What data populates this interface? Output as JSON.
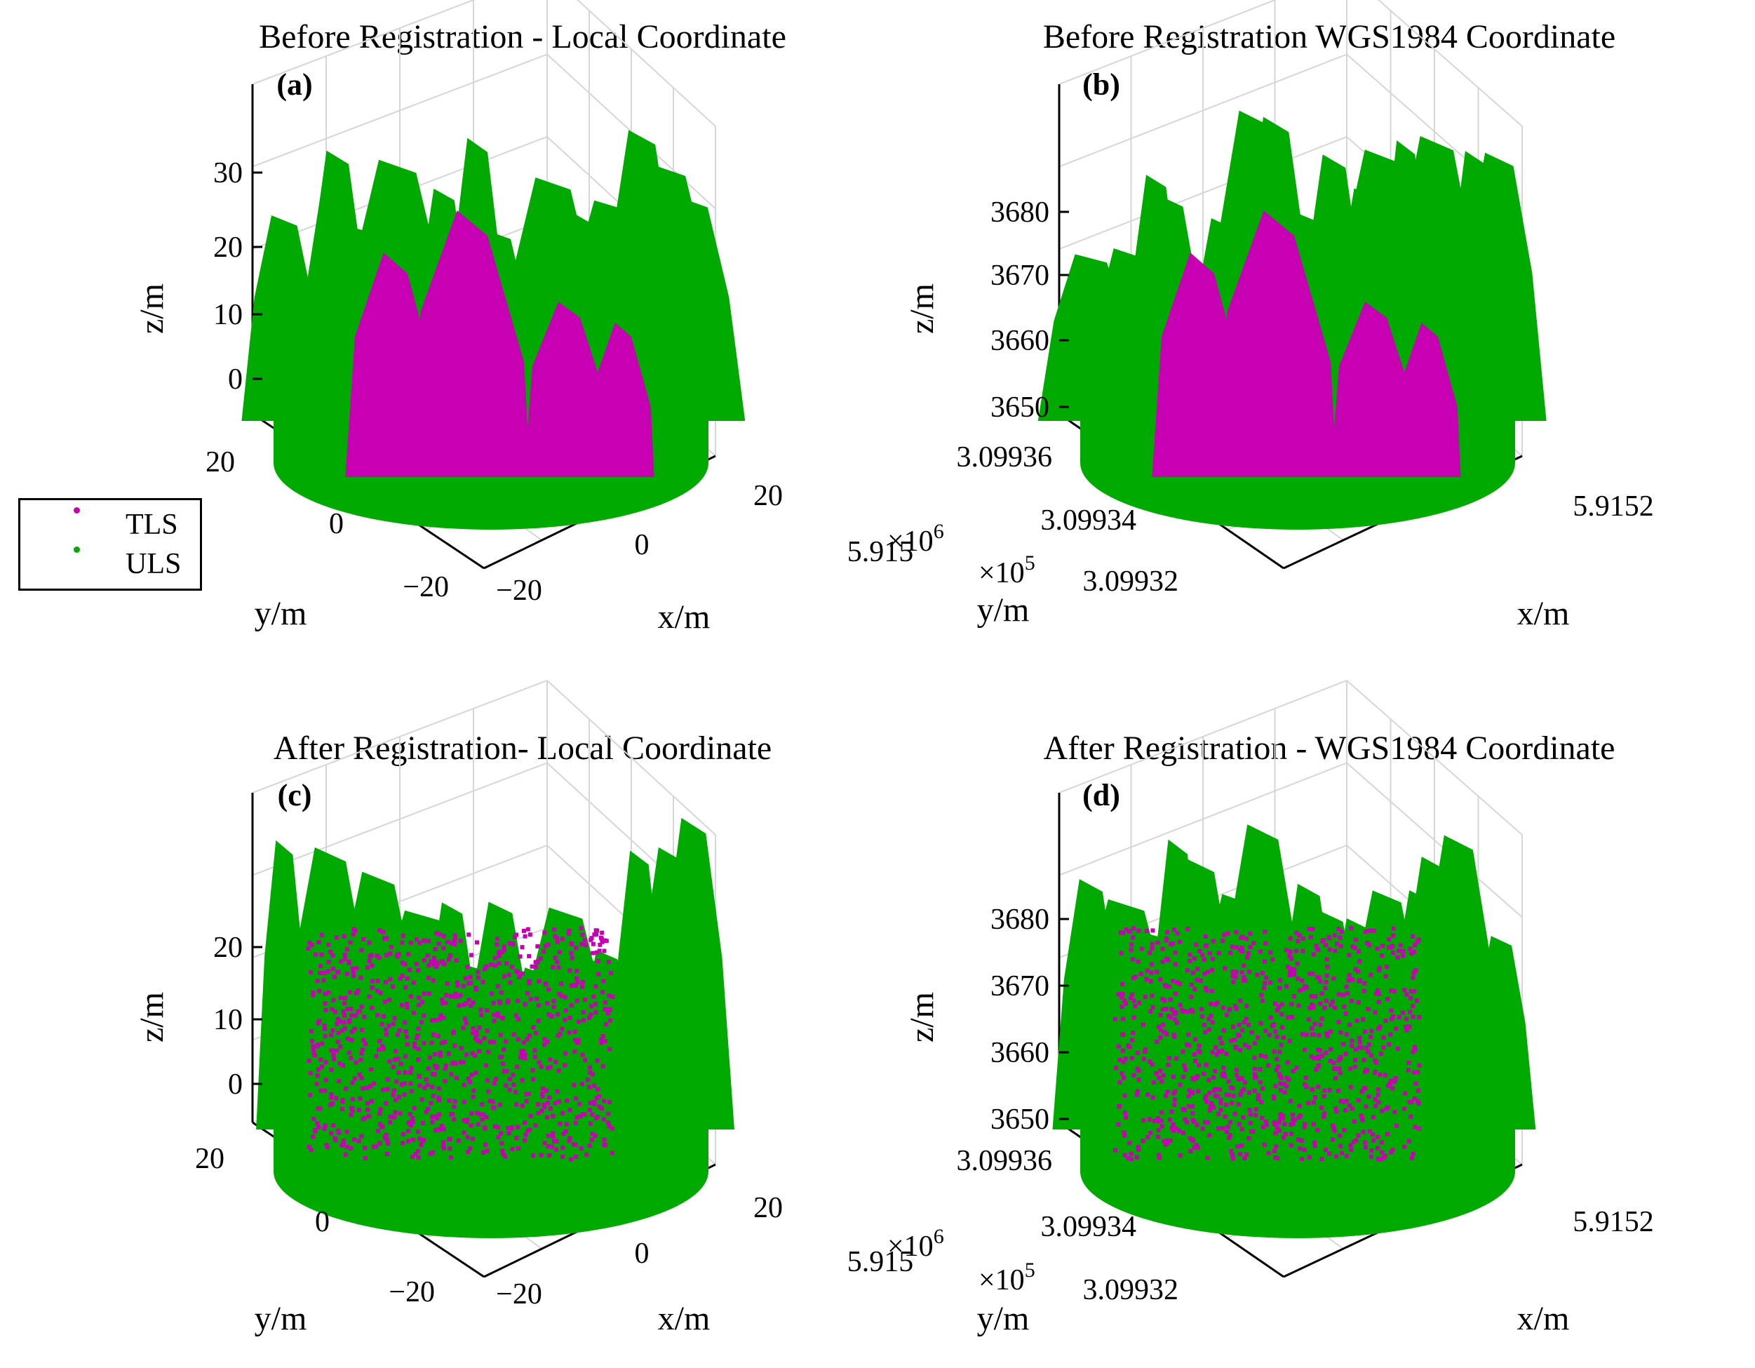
{
  "chart_data": [
    {
      "type": "scatter",
      "id": "a",
      "title": "Before Registration - Local Coordinate",
      "panel_label": "(a)",
      "xlabel": "x/m",
      "ylabel": "y/m",
      "zlabel": "z/m",
      "xticks": [
        "−20",
        "0",
        "20"
      ],
      "yticks": [
        "−20",
        "0",
        "20"
      ],
      "zticks": [
        "0",
        "10",
        "20",
        "30"
      ],
      "exponent": "×10",
      "exponent_power": "6",
      "series": [
        {
          "name": "TLS",
          "color": "#c800b4",
          "values": "cluster of points, local"
        },
        {
          "name": "ULS",
          "color": "#00aa00",
          "values": "cluster of points, local"
        }
      ]
    },
    {
      "type": "scatter",
      "id": "b",
      "title": "Before Registration WGS1984 Coordinate",
      "panel_label": "(b)",
      "xlabel": "x/m",
      "ylabel": "y/m",
      "zlabel": "z/m",
      "xticks": [
        "5.915",
        "5.9152"
      ],
      "yticks": [
        "3.09932",
        "3.09934",
        "3.09936"
      ],
      "zticks": [
        "3650",
        "3660",
        "3670",
        "3680"
      ],
      "exponent": "×10",
      "exponent_power": "5",
      "series": [
        {
          "name": "TLS",
          "color": "#c800b4",
          "values": "cluster of points, WGS1984"
        },
        {
          "name": "ULS",
          "color": "#00aa00",
          "values": "cluster of points, WGS1984"
        }
      ]
    },
    {
      "type": "scatter",
      "id": "c",
      "title": "After Registration- Local Coordinate",
      "panel_label": "(c)",
      "xlabel": "x/m",
      "ylabel": "y/m",
      "zlabel": "z/m",
      "xticks": [
        "−20",
        "0",
        "20"
      ],
      "yticks": [
        "−20",
        "0",
        "20"
      ],
      "zticks": [
        "0",
        "10",
        "20"
      ],
      "exponent": "×10",
      "exponent_power": "6",
      "series": [
        {
          "name": "TLS",
          "color": "#c800b4",
          "values": "cluster of points, local"
        },
        {
          "name": "ULS",
          "color": "#00aa00",
          "values": "cluster of points, local"
        }
      ]
    },
    {
      "type": "scatter",
      "id": "d",
      "title": "After Registration - WGS1984 Coordinate",
      "panel_label": "(d)",
      "xlabel": "x/m",
      "ylabel": "y/m",
      "zlabel": "z/m",
      "xticks": [
        "5.915",
        "5.9152"
      ],
      "yticks": [
        "3.09932",
        "3.09934",
        "3.09936"
      ],
      "zticks": [
        "3650",
        "3660",
        "3670",
        "3680"
      ],
      "exponent": "×10",
      "exponent_power": "5",
      "series": [
        {
          "name": "TLS",
          "color": "#c800b4",
          "values": "cluster of points, WGS1984"
        },
        {
          "name": "ULS",
          "color": "#00aa00",
          "values": "cluster of points, WGS1984"
        }
      ]
    }
  ],
  "legend": {
    "items": [
      {
        "label": "TLS",
        "color": "#c800b4"
      },
      {
        "label": "ULS",
        "color": "#00aa00"
      }
    ]
  },
  "colors": {
    "tls": "#c800b4",
    "uls": "#00aa00",
    "grid": "#d6d6d6"
  }
}
